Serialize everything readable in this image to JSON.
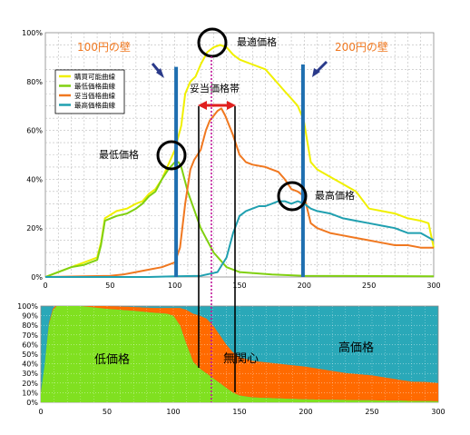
{
  "chart_data": [
    {
      "type": "line",
      "xlim": [
        0,
        300
      ],
      "ylim": [
        0,
        100
      ],
      "grid": true,
      "legend_position": "top-left",
      "x_ticks": [
        "0",
        "50",
        "100",
        "150",
        "200",
        "250",
        "300"
      ],
      "y_ticks": [
        "0%",
        "20%",
        "40%",
        "60%",
        "80%",
        "100%"
      ],
      "series": [
        {
          "name": "購買可能曲線",
          "color": "#f0f000",
          "points": [
            [
              0,
              0
            ],
            [
              10,
              2
            ],
            [
              20,
              4
            ],
            [
              30,
              6
            ],
            [
              40,
              8
            ],
            [
              43,
              14
            ],
            [
              46,
              24
            ],
            [
              55,
              27
            ],
            [
              63,
              28
            ],
            [
              70,
              30
            ],
            [
              75,
              31
            ],
            [
              80,
              34
            ],
            [
              85,
              36
            ],
            [
              90,
              40
            ],
            [
              95,
              46
            ],
            [
              100,
              52
            ],
            [
              105,
              62
            ],
            [
              108,
              75
            ],
            [
              112,
              80
            ],
            [
              116,
              82
            ],
            [
              120,
              87
            ],
            [
              125,
              92
            ],
            [
              130,
              94
            ],
            [
              135,
              95
            ],
            [
              140,
              94
            ],
            [
              145,
              91
            ],
            [
              150,
              89
            ],
            [
              155,
              88
            ],
            [
              160,
              87
            ],
            [
              165,
              86
            ],
            [
              170,
              85
            ],
            [
              175,
              82
            ],
            [
              180,
              79
            ],
            [
              185,
              76
            ],
            [
              190,
              73
            ],
            [
              195,
              70
            ],
            [
              199,
              65
            ],
            [
              200,
              63
            ],
            [
              205,
              47
            ],
            [
              210,
              44
            ],
            [
              220,
              41
            ],
            [
              230,
              38
            ],
            [
              240,
              35
            ],
            [
              250,
              28
            ],
            [
              260,
              27
            ],
            [
              270,
              26
            ],
            [
              280,
              24
            ],
            [
              290,
              23
            ],
            [
              296,
              22
            ],
            [
              300,
              12
            ]
          ]
        },
        {
          "name": "最低価格曲線",
          "color": "#80d010",
          "points": [
            [
              0,
              0
            ],
            [
              10,
              2
            ],
            [
              20,
              4
            ],
            [
              30,
              5
            ],
            [
              40,
              7
            ],
            [
              43,
              13
            ],
            [
              46,
              23
            ],
            [
              55,
              25
            ],
            [
              63,
              26
            ],
            [
              70,
              28
            ],
            [
              75,
              30
            ],
            [
              80,
              33
            ],
            [
              85,
              35
            ],
            [
              90,
              40
            ],
            [
              95,
              44
            ],
            [
              100,
              47
            ],
            [
              103,
              47
            ],
            [
              105,
              45
            ],
            [
              110,
              35
            ],
            [
              120,
              20
            ],
            [
              130,
              10
            ],
            [
              140,
              4
            ],
            [
              150,
              2
            ],
            [
              175,
              1
            ],
            [
              200,
              0.5
            ],
            [
              300,
              0.3
            ]
          ]
        },
        {
          "name": "妥当価格曲線",
          "color": "#f07820",
          "points": [
            [
              0,
              0
            ],
            [
              50,
              0.5
            ],
            [
              60,
              1
            ],
            [
              70,
              2
            ],
            [
              80,
              3
            ],
            [
              90,
              4
            ],
            [
              95,
              5
            ],
            [
              100,
              6
            ],
            [
              104,
              12
            ],
            [
              108,
              30
            ],
            [
              112,
              44
            ],
            [
              115,
              48
            ],
            [
              120,
              52
            ],
            [
              124,
              60
            ],
            [
              127,
              64
            ],
            [
              130,
              66
            ],
            [
              133,
              68
            ],
            [
              136,
              69
            ],
            [
              139,
              66
            ],
            [
              142,
              62
            ],
            [
              145,
              58
            ],
            [
              150,
              50
            ],
            [
              155,
              47
            ],
            [
              160,
              46
            ],
            [
              170,
              45
            ],
            [
              180,
              43
            ],
            [
              185,
              40
            ],
            [
              190,
              36
            ],
            [
              195,
              35
            ],
            [
              200,
              33
            ],
            [
              205,
              22
            ],
            [
              210,
              20
            ],
            [
              220,
              18
            ],
            [
              230,
              17
            ],
            [
              240,
              16
            ],
            [
              250,
              15
            ],
            [
              260,
              14
            ],
            [
              270,
              13
            ],
            [
              280,
              13
            ],
            [
              290,
              12
            ],
            [
              300,
              12
            ]
          ]
        },
        {
          "name": "最高価格曲線",
          "color": "#20a0b0",
          "points": [
            [
              0,
              0
            ],
            [
              80,
              0
            ],
            [
              100,
              0.3
            ],
            [
              120,
              0.5
            ],
            [
              133,
              2
            ],
            [
              140,
              8
            ],
            [
              145,
              18
            ],
            [
              150,
              25
            ],
            [
              155,
              27
            ],
            [
              160,
              28
            ],
            [
              165,
              29
            ],
            [
              170,
              29
            ],
            [
              175,
              30
            ],
            [
              180,
              31
            ],
            [
              185,
              31
            ],
            [
              190,
              30
            ],
            [
              195,
              31
            ],
            [
              200,
              30
            ],
            [
              205,
              28
            ],
            [
              210,
              27
            ],
            [
              220,
              26
            ],
            [
              230,
              24
            ],
            [
              240,
              23
            ],
            [
              250,
              22
            ],
            [
              260,
              21
            ],
            [
              270,
              20
            ],
            [
              280,
              18
            ],
            [
              290,
              18
            ],
            [
              300,
              15
            ]
          ]
        }
      ],
      "annotations": {
        "wall_100": "100円の壁",
        "wall_200": "200円の壁",
        "optimal": "最適価格",
        "band": "妥当価格帯",
        "lowest": "最低価格",
        "highest": "最高価格"
      }
    },
    {
      "type": "area",
      "xlim": [
        0,
        300
      ],
      "ylim": [
        0,
        100
      ],
      "grid": true,
      "stacked": true,
      "x_ticks": [
        "0",
        "50",
        "100",
        "150",
        "200",
        "250",
        "300"
      ],
      "y_ticks": [
        "0%",
        "10%",
        "20%",
        "30%",
        "40%",
        "50%",
        "60%",
        "70%",
        "80%",
        "90%",
        "100%"
      ],
      "series": [
        {
          "name": "低価格",
          "color": "#80e020",
          "points": [
            [
              0,
              10
            ],
            [
              3,
              40
            ],
            [
              6,
              80
            ],
            [
              9,
              95
            ],
            [
              12,
              100
            ],
            [
              30,
              100
            ],
            [
              50,
              97
            ],
            [
              70,
              95
            ],
            [
              85,
              93
            ],
            [
              95,
              92
            ],
            [
              100,
              90
            ],
            [
              105,
              80
            ],
            [
              110,
              60
            ],
            [
              115,
              42
            ],
            [
              120,
              35
            ],
            [
              125,
              30
            ],
            [
              130,
              25
            ],
            [
              135,
              20
            ],
            [
              140,
              15
            ],
            [
              145,
              10
            ],
            [
              150,
              7
            ],
            [
              160,
              5
            ],
            [
              180,
              4
            ],
            [
              200,
              3
            ],
            [
              250,
              2
            ],
            [
              300,
              1
            ]
          ]
        },
        {
          "name": "無関心",
          "color": "#ff6a00",
          "points": [
            [
              0,
              0
            ],
            [
              3,
              0
            ],
            [
              6,
              2
            ],
            [
              10,
              2
            ],
            [
              50,
              3
            ],
            [
              70,
              4
            ],
            [
              85,
              5
            ],
            [
              95,
              6
            ],
            [
              100,
              8
            ],
            [
              105,
              18
            ],
            [
              110,
              36
            ],
            [
              115,
              50
            ],
            [
              120,
              55
            ],
            [
              125,
              57
            ],
            [
              130,
              55
            ],
            [
              135,
              50
            ],
            [
              140,
              45
            ],
            [
              145,
              42
            ],
            [
              150,
              40
            ],
            [
              160,
              38
            ],
            [
              170,
              37
            ],
            [
              180,
              36
            ],
            [
              190,
              35
            ],
            [
              200,
              34
            ],
            [
              210,
              32
            ],
            [
              220,
              30
            ],
            [
              230,
              28
            ],
            [
              240,
              27
            ],
            [
              250,
              26
            ],
            [
              260,
              24
            ],
            [
              270,
              22
            ],
            [
              280,
              20
            ],
            [
              290,
              20
            ],
            [
              300,
              19
            ]
          ]
        },
        {
          "name": "高価格",
          "color": "#2aa8b8",
          "fill_rest": true
        }
      ],
      "labels": {
        "low": "低価格",
        "indifferent": "無関心",
        "high": "高価格"
      }
    }
  ]
}
